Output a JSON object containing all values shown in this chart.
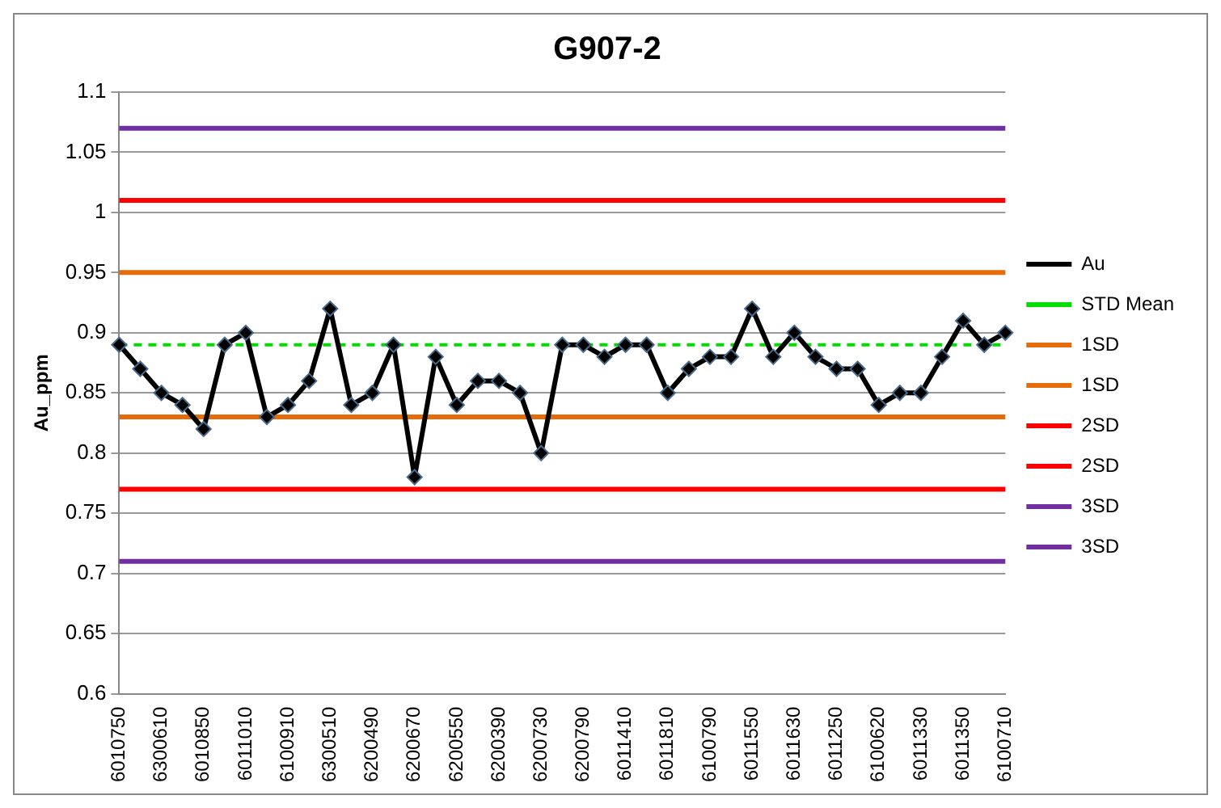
{
  "chart_data": {
    "type": "line",
    "title": "G907-2",
    "ylabel": "Au_ppm",
    "categories": [
      "6010750",
      null,
      "6300610",
      null,
      "6010850",
      null,
      "6011010",
      null,
      "6100910",
      null,
      "6300510",
      null,
      "6200490",
      null,
      "6200670",
      null,
      "6200550",
      null,
      "6200390",
      null,
      "6200730",
      null,
      "6200790",
      null,
      "6011410",
      null,
      "6011810",
      null,
      "6100790",
      null,
      "6011550",
      null,
      "6011630",
      null,
      "6011250",
      null,
      "6100620",
      null,
      "6011330",
      null,
      "6011350",
      null,
      "6100710"
    ],
    "series": [
      {
        "name": "Au",
        "color": "#000000",
        "values": [
          0.89,
          0.87,
          0.85,
          0.84,
          0.82,
          0.89,
          0.9,
          0.83,
          0.84,
          0.86,
          0.92,
          0.84,
          0.85,
          0.89,
          0.78,
          0.88,
          0.84,
          0.86,
          0.86,
          0.85,
          0.8,
          0.89,
          0.89,
          0.88,
          0.89,
          0.89,
          0.85,
          0.87,
          0.88,
          0.88,
          0.92,
          0.88,
          0.9,
          0.88,
          0.87,
          0.87,
          0.84,
          0.85,
          0.85,
          0.88,
          0.91,
          0.89,
          0.9
        ]
      },
      {
        "name": "STD Mean",
        "color": "#00dd00",
        "line_style": "dashed",
        "marker": "none",
        "values": [
          0.89,
          0.89,
          0.89,
          0.89,
          0.89,
          0.89,
          0.89,
          0.89,
          0.89,
          0.89,
          0.89,
          0.89,
          0.89,
          0.89,
          0.89,
          0.89,
          0.89,
          0.89,
          0.89,
          0.89,
          0.89,
          0.89,
          0.89,
          0.89,
          0.89,
          0.89,
          0.89,
          0.89,
          0.89,
          0.89,
          0.89,
          0.89,
          0.89,
          0.89,
          0.89,
          0.89,
          0.89,
          0.89,
          0.89,
          0.89,
          0.89,
          0.89,
          0.89
        ]
      },
      {
        "name": "1SD",
        "color": "#e46c0a",
        "marker": "none",
        "values": [
          0.95,
          0.95,
          0.95,
          0.95,
          0.95,
          0.95,
          0.95,
          0.95,
          0.95,
          0.95,
          0.95,
          0.95,
          0.95,
          0.95,
          0.95,
          0.95,
          0.95,
          0.95,
          0.95,
          0.95,
          0.95,
          0.95,
          0.95,
          0.95,
          0.95,
          0.95,
          0.95,
          0.95,
          0.95,
          0.95,
          0.95,
          0.95,
          0.95,
          0.95,
          0.95,
          0.95,
          0.95,
          0.95,
          0.95,
          0.95,
          0.95,
          0.95,
          0.95
        ]
      },
      {
        "name": "1SD",
        "color": "#e46c0a",
        "marker": "none",
        "values": [
          0.83,
          0.83,
          0.83,
          0.83,
          0.83,
          0.83,
          0.83,
          0.83,
          0.83,
          0.83,
          0.83,
          0.83,
          0.83,
          0.83,
          0.83,
          0.83,
          0.83,
          0.83,
          0.83,
          0.83,
          0.83,
          0.83,
          0.83,
          0.83,
          0.83,
          0.83,
          0.83,
          0.83,
          0.83,
          0.83,
          0.83,
          0.83,
          0.83,
          0.83,
          0.83,
          0.83,
          0.83,
          0.83,
          0.83,
          0.83,
          0.83,
          0.83,
          0.83
        ]
      },
      {
        "name": "2SD",
        "color": "#ff0000",
        "marker": "none",
        "values": [
          1.01,
          1.01,
          1.01,
          1.01,
          1.01,
          1.01,
          1.01,
          1.01,
          1.01,
          1.01,
          1.01,
          1.01,
          1.01,
          1.01,
          1.01,
          1.01,
          1.01,
          1.01,
          1.01,
          1.01,
          1.01,
          1.01,
          1.01,
          1.01,
          1.01,
          1.01,
          1.01,
          1.01,
          1.01,
          1.01,
          1.01,
          1.01,
          1.01,
          1.01,
          1.01,
          1.01,
          1.01,
          1.01,
          1.01,
          1.01,
          1.01,
          1.01,
          1.01
        ]
      },
      {
        "name": "2SD",
        "color": "#ff0000",
        "marker": "none",
        "values": [
          0.77,
          0.77,
          0.77,
          0.77,
          0.77,
          0.77,
          0.77,
          0.77,
          0.77,
          0.77,
          0.77,
          0.77,
          0.77,
          0.77,
          0.77,
          0.77,
          0.77,
          0.77,
          0.77,
          0.77,
          0.77,
          0.77,
          0.77,
          0.77,
          0.77,
          0.77,
          0.77,
          0.77,
          0.77,
          0.77,
          0.77,
          0.77,
          0.77,
          0.77,
          0.77,
          0.77,
          0.77,
          0.77,
          0.77,
          0.77,
          0.77,
          0.77,
          0.77
        ]
      },
      {
        "name": "3SD",
        "color": "#7030a0",
        "marker": "none",
        "values": [
          1.07,
          1.07,
          1.07,
          1.07,
          1.07,
          1.07,
          1.07,
          1.07,
          1.07,
          1.07,
          1.07,
          1.07,
          1.07,
          1.07,
          1.07,
          1.07,
          1.07,
          1.07,
          1.07,
          1.07,
          1.07,
          1.07,
          1.07,
          1.07,
          1.07,
          1.07,
          1.07,
          1.07,
          1.07,
          1.07,
          1.07,
          1.07,
          1.07,
          1.07,
          1.07,
          1.07,
          1.07,
          1.07,
          1.07,
          1.07,
          1.07,
          1.07,
          1.07
        ]
      },
      {
        "name": "3SD",
        "color": "#7030a0",
        "marker": "none",
        "values": [
          0.71,
          0.71,
          0.71,
          0.71,
          0.71,
          0.71,
          0.71,
          0.71,
          0.71,
          0.71,
          0.71,
          0.71,
          0.71,
          0.71,
          0.71,
          0.71,
          0.71,
          0.71,
          0.71,
          0.71,
          0.71,
          0.71,
          0.71,
          0.71,
          0.71,
          0.71,
          0.71,
          0.71,
          0.71,
          0.71,
          0.71,
          0.71,
          0.71,
          0.71,
          0.71,
          0.71,
          0.71,
          0.71,
          0.71,
          0.71,
          0.71,
          0.71,
          0.71
        ]
      }
    ],
    "ylim": [
      0.6,
      1.1
    ],
    "yticks": [
      0.6,
      0.65,
      0.7,
      0.75,
      0.8,
      0.85,
      0.9,
      0.95,
      1,
      1.05,
      1.1
    ],
    "grid": "y",
    "legend": "right",
    "marker": "diamond",
    "line_style": "solid"
  }
}
